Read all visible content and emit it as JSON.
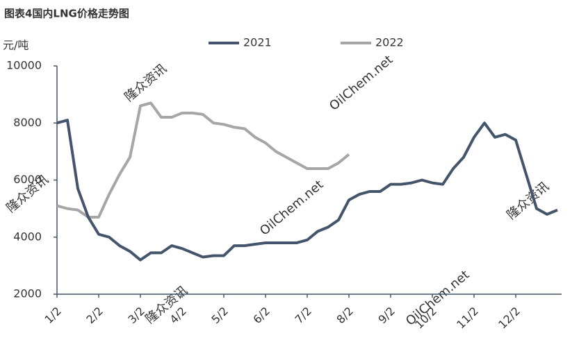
{
  "chart_data": {
    "type": "line",
    "title": "图表4国内LNG价格走势图",
    "y_label": "元/吨",
    "watermarks": [
      "隆众资讯",
      "OilChem.net"
    ],
    "categories": [
      "1/2",
      null,
      null,
      null,
      "2/2",
      null,
      null,
      null,
      "3/2",
      null,
      null,
      null,
      "4/2",
      null,
      null,
      null,
      "5/2",
      null,
      null,
      null,
      "6/2",
      null,
      null,
      null,
      "7/2",
      null,
      null,
      null,
      "8/2",
      null,
      null,
      null,
      "9/2",
      null,
      null,
      null,
      "10/2",
      null,
      null,
      null,
      "11/2",
      null,
      null,
      null,
      "12/2",
      null,
      null,
      null,
      null
    ],
    "series": [
      {
        "name": "2021",
        "color": "#44546a",
        "values": [
          8000,
          8100,
          5700,
          4700,
          4100,
          4000,
          3700,
          3500,
          3200,
          3450,
          3450,
          3700,
          3600,
          3450,
          3300,
          3350,
          3350,
          3700,
          3700,
          3750,
          3800,
          3800,
          3800,
          3800,
          3900,
          4200,
          4350,
          4600,
          5300,
          5500,
          5600,
          5600,
          5850,
          5850,
          5900,
          6000,
          5900,
          5850,
          6400,
          6800,
          7500,
          8000,
          7500,
          7600,
          7400,
          6200,
          5000,
          4800,
          4950
        ]
      },
      {
        "name": "2022",
        "color": "#a6a6a6",
        "values": [
          5100,
          5000,
          4950,
          4700,
          4700,
          5500,
          6200,
          6800,
          8600,
          8700,
          8200,
          8200,
          8350,
          8350,
          8300,
          8000,
          7950,
          7850,
          7800,
          7500,
          7300,
          7000,
          6800,
          6600,
          6400,
          6400,
          6400,
          6600,
          6900,
          null,
          null,
          null,
          null,
          null,
          null,
          null,
          null,
          null,
          null,
          null,
          null,
          null,
          null,
          null,
          null,
          null,
          null,
          null,
          null
        ]
      }
    ],
    "ylim": [
      2000,
      10000
    ],
    "yticks": [
      2000,
      4000,
      6000,
      8000,
      10000
    ],
    "legend": "top",
    "grid": false
  }
}
